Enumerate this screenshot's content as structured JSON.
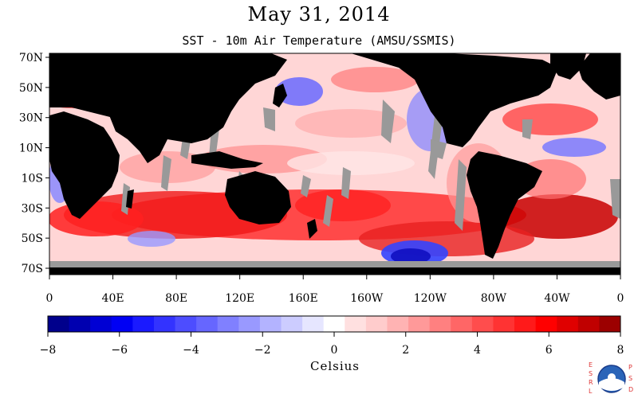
{
  "title": "May 31, 2014",
  "subtitle": "SST - 10m Air Temperature (AMSU/SSMIS)",
  "map": {
    "lat_labels": [
      "70N",
      "50N",
      "30N",
      "10N",
      "10S",
      "30S",
      "50S",
      "70S"
    ],
    "lon_labels": [
      "0",
      "40E",
      "80E",
      "120E",
      "160E",
      "160W",
      "120W",
      "80W",
      "40W",
      "0"
    ],
    "colors": {
      "land": "#000000",
      "no_data": "#999999",
      "ocean_base": "#ffd9d9"
    }
  },
  "colorbar": {
    "unit": "Celsius",
    "tick_labels": [
      "−8",
      "−6",
      "−4",
      "−2",
      "0",
      "2",
      "4",
      "6",
      "8"
    ],
    "min": -8,
    "max": 8,
    "step": 0.67,
    "colors": [
      "#00008c",
      "#0000b0",
      "#0000d4",
      "#0000f4",
      "#1a1aff",
      "#3333ff",
      "#4d4dff",
      "#6666ff",
      "#8080ff",
      "#9999ff",
      "#b3b3ff",
      "#ccccff",
      "#e6e6ff",
      "#ffffff",
      "#ffe0e0",
      "#ffcccc",
      "#ffb3b3",
      "#ff9999",
      "#ff8080",
      "#ff6666",
      "#ff4d4d",
      "#ff3333",
      "#ff1a1a",
      "#ff0000",
      "#e00000",
      "#c00000",
      "#9c0000"
    ]
  },
  "logo": {
    "left_text": "ESRL",
    "right_text": "PSD",
    "center_text": "NOAA"
  }
}
